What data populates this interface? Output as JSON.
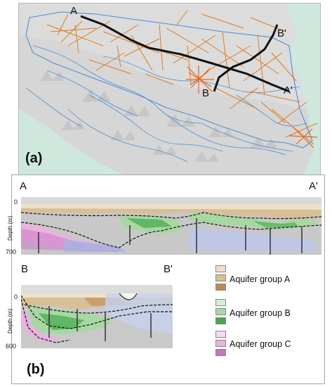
{
  "map": {
    "panel_tag": "(a)",
    "sections": [
      {
        "start": "A",
        "end": "A'"
      },
      {
        "start": "B",
        "end": "B'"
      }
    ],
    "colors": {
      "sea": "#cfe8dd",
      "land": "#d5d5d5",
      "rivers": "#4a8fd6",
      "survey_lines": "#e07a1f",
      "section_lines": "#111111"
    }
  },
  "cross_sections": {
    "panel_tag": "(b)",
    "aa": {
      "start": "A",
      "end": "A'",
      "depth_axis_label": "Depth (m)",
      "depth_top": "0",
      "depth_bottom": "700"
    },
    "bb": {
      "start": "B",
      "end": "B'",
      "depth_axis_label": "Depth (m)",
      "depth_top": "0",
      "depth_bottom": "600"
    }
  },
  "legend": [
    {
      "label": "Aquifer group A",
      "colors": [
        "#ece1c8",
        "#d8bf96",
        "#c08a4f"
      ]
    },
    {
      "label": "Aquifer group B",
      "colors": [
        "#d7ecd4",
        "#a9d7a3",
        "#42a94a"
      ]
    },
    {
      "label": "Aquifer group C",
      "colors": [
        "#f6d8ef",
        "#eab2e0",
        "#c676c6"
      ]
    }
  ]
}
